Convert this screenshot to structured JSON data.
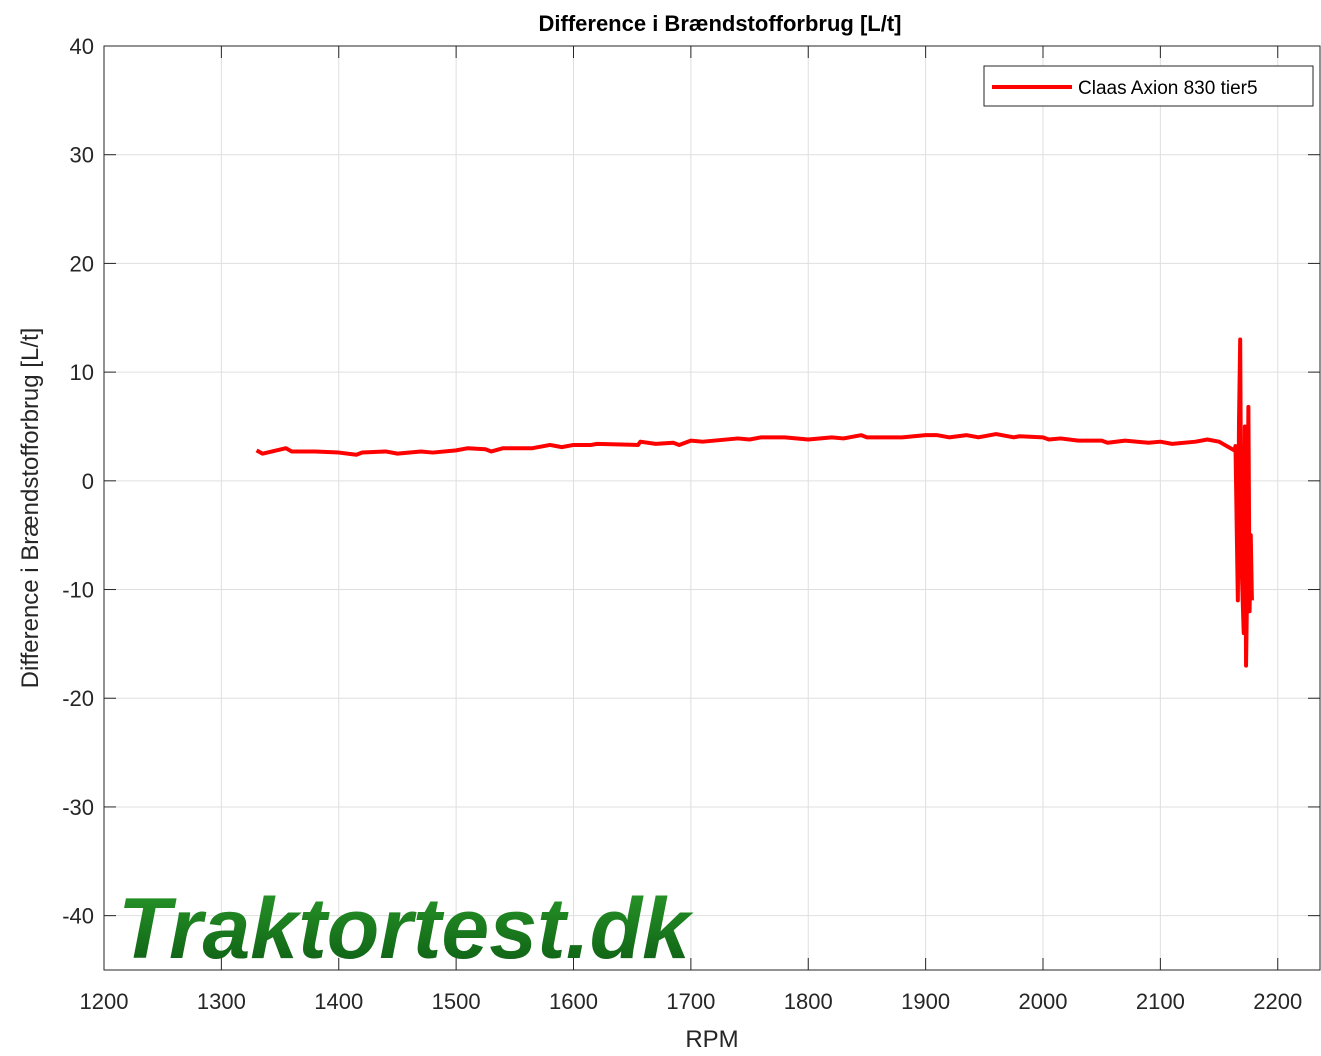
{
  "chart_data": {
    "type": "line",
    "title": "Difference i Brændstofforbrug [L/t]",
    "xlabel": "RPM",
    "ylabel": "Difference i Brændstofforbrug [L/t]",
    "watermark": "Traktortest.dk",
    "xlim": [
      1200,
      2236
    ],
    "ylim": [
      -45,
      40
    ],
    "xticks": [
      1200,
      1300,
      1400,
      1500,
      1600,
      1700,
      1800,
      1900,
      2000,
      2100,
      2200
    ],
    "yticks": [
      -40,
      -30,
      -20,
      -10,
      0,
      10,
      20,
      30,
      40
    ],
    "grid": true,
    "legend": "top-right",
    "x": [
      1330,
      1335,
      1355,
      1360,
      1380,
      1400,
      1415,
      1420,
      1440,
      1450,
      1470,
      1480,
      1500,
      1510,
      1525,
      1530,
      1540,
      1565,
      1580,
      1590,
      1600,
      1615,
      1620,
      1655,
      1657,
      1670,
      1685,
      1690,
      1700,
      1710,
      1740,
      1750,
      1760,
      1780,
      1800,
      1820,
      1830,
      1845,
      1850,
      1880,
      1900,
      1910,
      1920,
      1935,
      1945,
      1960,
      1975,
      1980,
      2000,
      2005,
      2015,
      2030,
      2050,
      2055,
      2070,
      2090,
      2100,
      2110,
      2130,
      2140,
      2150,
      2163,
      2164,
      2166,
      2167,
      2168,
      2169,
      2171,
      2172,
      2173,
      2174,
      2175,
      2176,
      2177,
      2178
    ],
    "series": [
      {
        "name": "Claas Axion 830 tier5",
        "color": "#ff0000",
        "values": [
          2.8,
          2.5,
          3.0,
          2.7,
          2.7,
          2.6,
          2.4,
          2.6,
          2.7,
          2.5,
          2.7,
          2.6,
          2.8,
          3.0,
          2.9,
          2.7,
          3.0,
          3.0,
          3.3,
          3.1,
          3.3,
          3.3,
          3.4,
          3.3,
          3.6,
          3.4,
          3.5,
          3.3,
          3.7,
          3.6,
          3.9,
          3.8,
          4.0,
          4.0,
          3.8,
          4.0,
          3.9,
          4.2,
          4.0,
          4.0,
          4.2,
          4.2,
          4.0,
          4.2,
          4.0,
          4.3,
          4.0,
          4.1,
          4.0,
          3.8,
          3.9,
          3.7,
          3.7,
          3.5,
          3.7,
          3.5,
          3.6,
          3.4,
          3.6,
          3.8,
          3.6,
          2.8,
          3.2,
          -11,
          5.5,
          13,
          -7,
          -14,
          5,
          -17,
          -9,
          6.8,
          -12,
          -5,
          -11
        ]
      }
    ]
  }
}
